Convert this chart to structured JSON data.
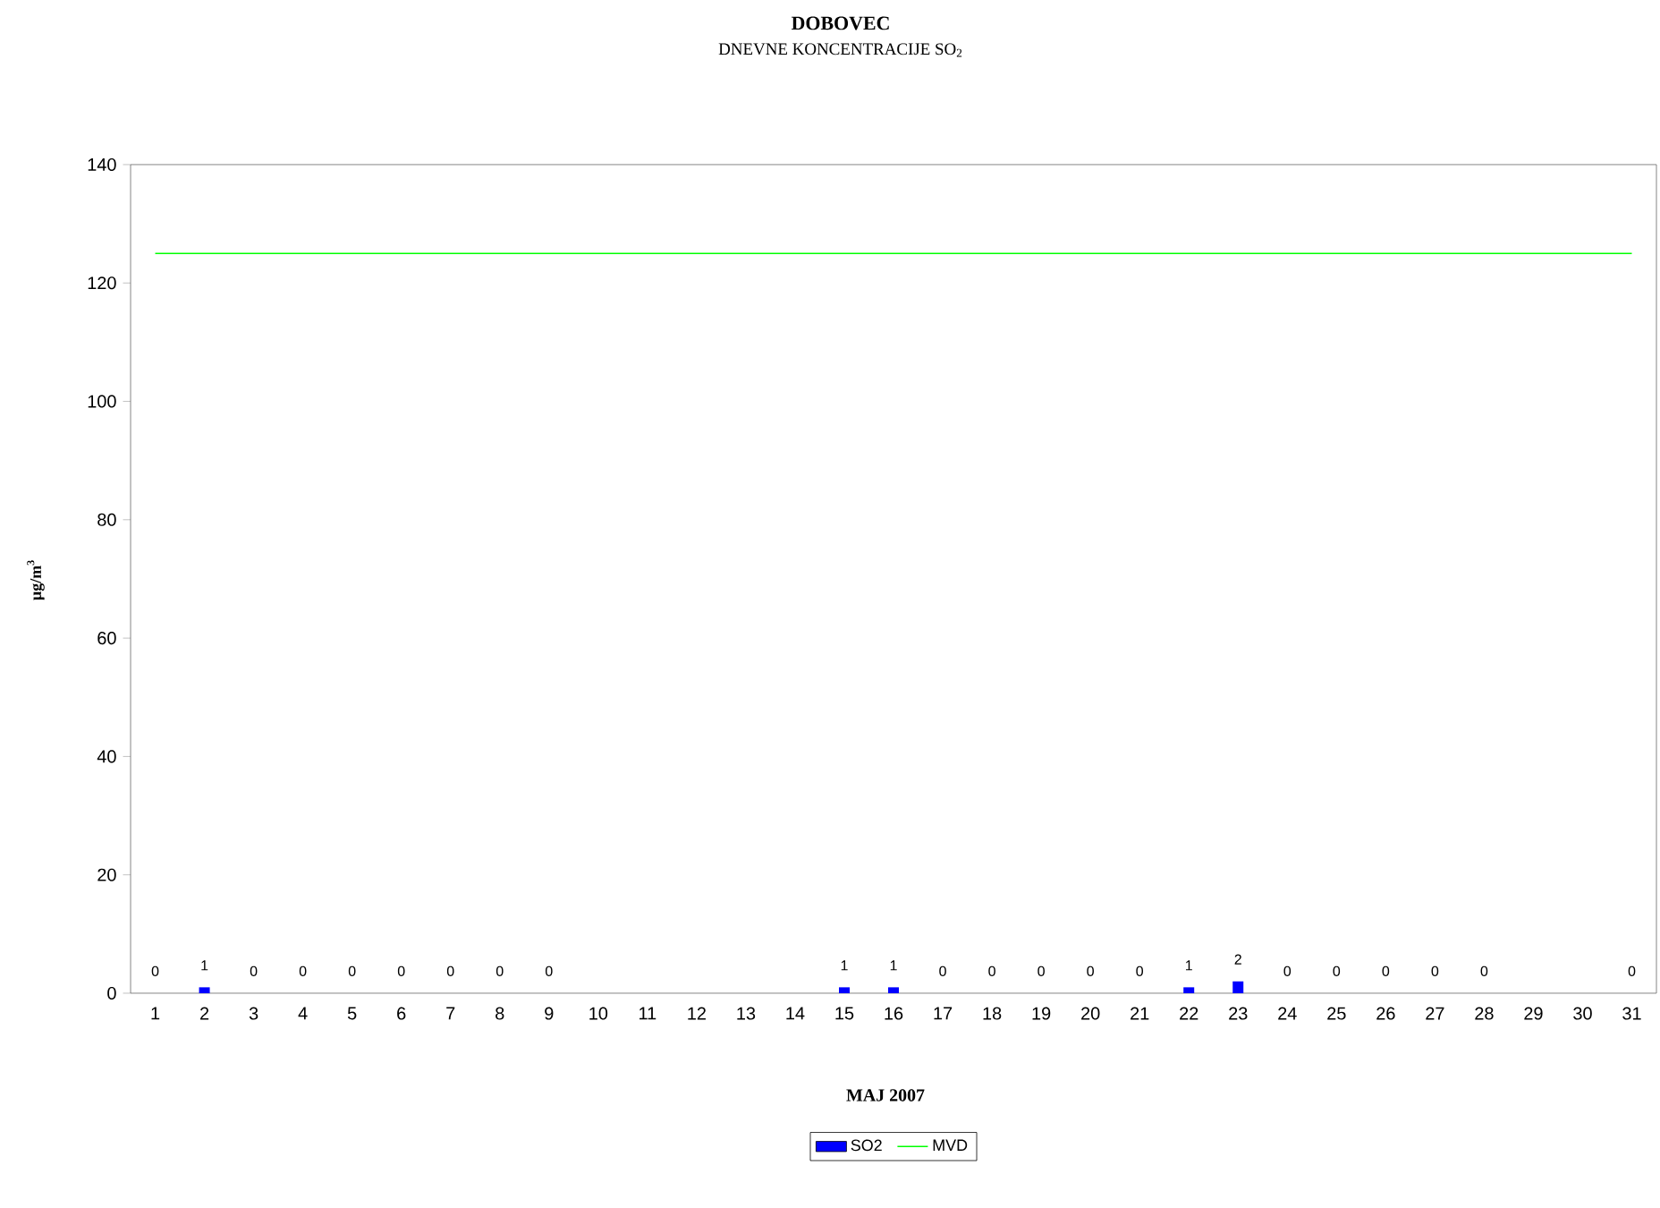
{
  "chart_data": {
    "type": "bar",
    "title": "DOBOVEC",
    "subtitle": "DNEVNE KONCENTRACIJE SO$_{2}$",
    "xlabel": "MAJ 2007",
    "ylabel": "µg/m$^{3}$",
    "categories": [
      "1",
      "2",
      "3",
      "4",
      "5",
      "6",
      "7",
      "8",
      "9",
      "10",
      "11",
      "12",
      "13",
      "14",
      "15",
      "16",
      "17",
      "18",
      "19",
      "20",
      "21",
      "22",
      "23",
      "24",
      "25",
      "26",
      "27",
      "28",
      "29",
      "30",
      "31"
    ],
    "series": [
      {
        "name": "SO2",
        "color": "#0000ff",
        "values": [
          0,
          1,
          0,
          0,
          0,
          0,
          0,
          0,
          0,
          null,
          null,
          null,
          null,
          null,
          1,
          1,
          0,
          0,
          0,
          0,
          0,
          1,
          2,
          0,
          0,
          0,
          0,
          0,
          null,
          null,
          0
        ],
        "value_labels": [
          "0",
          "1",
          "0",
          "0",
          "0",
          "0",
          "0",
          "0",
          "0",
          null,
          null,
          null,
          null,
          null,
          "1",
          "1",
          "0",
          "0",
          "0",
          "0",
          "0",
          "1",
          "2",
          "0",
          "0",
          "0",
          "0",
          "0",
          null,
          null,
          "0"
        ]
      },
      {
        "name": "MVD",
        "type": "line",
        "color": "#00ff00",
        "values": [
          125,
          125,
          125,
          125,
          125,
          125,
          125,
          125,
          125,
          125,
          125,
          125,
          125,
          125,
          125,
          125,
          125,
          125,
          125,
          125,
          125,
          125,
          125,
          125,
          125,
          125,
          125,
          125,
          125,
          125,
          125
        ]
      }
    ],
    "ylim": [
      0,
      140
    ],
    "yticks": [
      0,
      20,
      40,
      60,
      80,
      100,
      120,
      140
    ],
    "grid": false,
    "legend": "bottom"
  }
}
